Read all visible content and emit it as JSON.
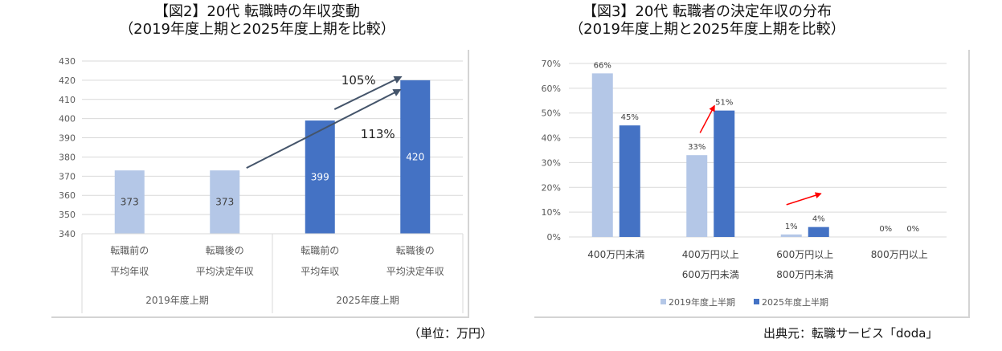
{
  "chart1": {
    "title_line1": "【図2】20代 転職時の年収変動",
    "title_line2": "（2019年度上期と2025年度上期を比較）",
    "unit_note": "（単位：万円）",
    "annotations": [
      "105%",
      "113%"
    ],
    "colors": {
      "light": "#b4c7e7",
      "dark": "#4472c4",
      "arrow": "#44546a",
      "grid": "#d9d9d9",
      "text": "#595959"
    }
  },
  "chart2": {
    "title_line1": "【図3】20代 転職者の決定年収の分布",
    "title_line2": "（2019年度上期と2025年度上期を比較）",
    "source_note": "出典元：転職サービス「doda」",
    "colors": {
      "light": "#b4c7e7",
      "dark": "#4472c4",
      "arrow": "#ff0000",
      "grid": "#d9d9d9",
      "text": "#595959"
    }
  },
  "chart_data": [
    {
      "type": "bar",
      "categories": [
        {
          "line1": "転職前の",
          "line2": "平均年収",
          "group": "2019年度上期"
        },
        {
          "line1": "転職後の",
          "line2": "平均決定年収",
          "group": "2019年度上期"
        },
        {
          "line1": "転職前の",
          "line2": "平均年収",
          "group": "2025年度上期"
        },
        {
          "line1": "転職後の",
          "line2": "平均決定年収",
          "group": "2025年度上期"
        }
      ],
      "groups": [
        "2019年度上期",
        "2025年度上期"
      ],
      "values": [
        373,
        373,
        399,
        420
      ],
      "value_labels": [
        "373",
        "373",
        "399",
        "420"
      ],
      "bar_colors": [
        "light",
        "light",
        "dark",
        "dark"
      ],
      "ylim": [
        340,
        430
      ],
      "yticks": [
        340,
        350,
        360,
        370,
        380,
        390,
        400,
        410,
        420,
        430
      ],
      "grid": true
    },
    {
      "type": "bar",
      "categories": [
        {
          "line1": "400万円未満",
          "line2": ""
        },
        {
          "line1": "400万円以上",
          "line2": "600万円未満"
        },
        {
          "line1": "600万円以上",
          "line2": "800万円未満"
        },
        {
          "line1": "800万円以上",
          "line2": ""
        }
      ],
      "series": [
        {
          "name": "2019年度上半期",
          "values": [
            66,
            33,
            1,
            0
          ],
          "labels": [
            "66%",
            "33%",
            "1%",
            "0%"
          ],
          "color": "light"
        },
        {
          "name": "2025年度上半期",
          "values": [
            45,
            51,
            4,
            0
          ],
          "labels": [
            "45%",
            "51%",
            "4%",
            "0%"
          ],
          "color": "dark"
        }
      ],
      "ylim": [
        0,
        70
      ],
      "yticks": [
        "0%",
        "10%",
        "20%",
        "30%",
        "40%",
        "50%",
        "60%",
        "70%"
      ],
      "grid": true,
      "legend": "bottom"
    }
  ]
}
